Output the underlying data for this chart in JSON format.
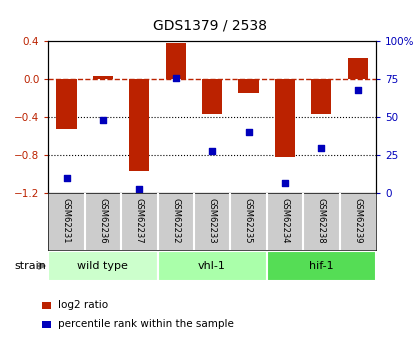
{
  "title": "GDS1379 / 2538",
  "samples": [
    "GSM62231",
    "GSM62236",
    "GSM62237",
    "GSM62232",
    "GSM62233",
    "GSM62235",
    "GSM62234",
    "GSM62238",
    "GSM62239"
  ],
  "log2_ratio": [
    -0.52,
    0.04,
    -0.97,
    0.38,
    -0.37,
    -0.14,
    -0.82,
    -0.37,
    0.22
  ],
  "percentile_rank": [
    10,
    48,
    3,
    76,
    28,
    40,
    7,
    30,
    68
  ],
  "groups": [
    {
      "label": "wild type",
      "count": 3,
      "color": "#ccffcc"
    },
    {
      "label": "vhl-1",
      "count": 3,
      "color": "#aaffaa"
    },
    {
      "label": "hif-1",
      "count": 3,
      "color": "#55dd55"
    }
  ],
  "bar_color": "#bb2200",
  "dot_color": "#0000bb",
  "left_ylim": [
    -1.2,
    0.4
  ],
  "right_ylim": [
    0,
    100
  ],
  "left_yticks": [
    -1.2,
    -0.8,
    -0.4,
    0.0,
    0.4
  ],
  "right_yticks": [
    0,
    25,
    50,
    75,
    100
  ],
  "right_yticklabels": [
    "0",
    "25",
    "50",
    "75",
    "100%"
  ],
  "hline_y": 0.0,
  "dotted_hlines": [
    -0.4,
    -0.8
  ],
  "background_color": "#ffffff",
  "strain_label": "strain",
  "legend_items": [
    {
      "label": "log2 ratio",
      "color": "#bb2200"
    },
    {
      "label": "percentile rank within the sample",
      "color": "#0000bb"
    }
  ]
}
